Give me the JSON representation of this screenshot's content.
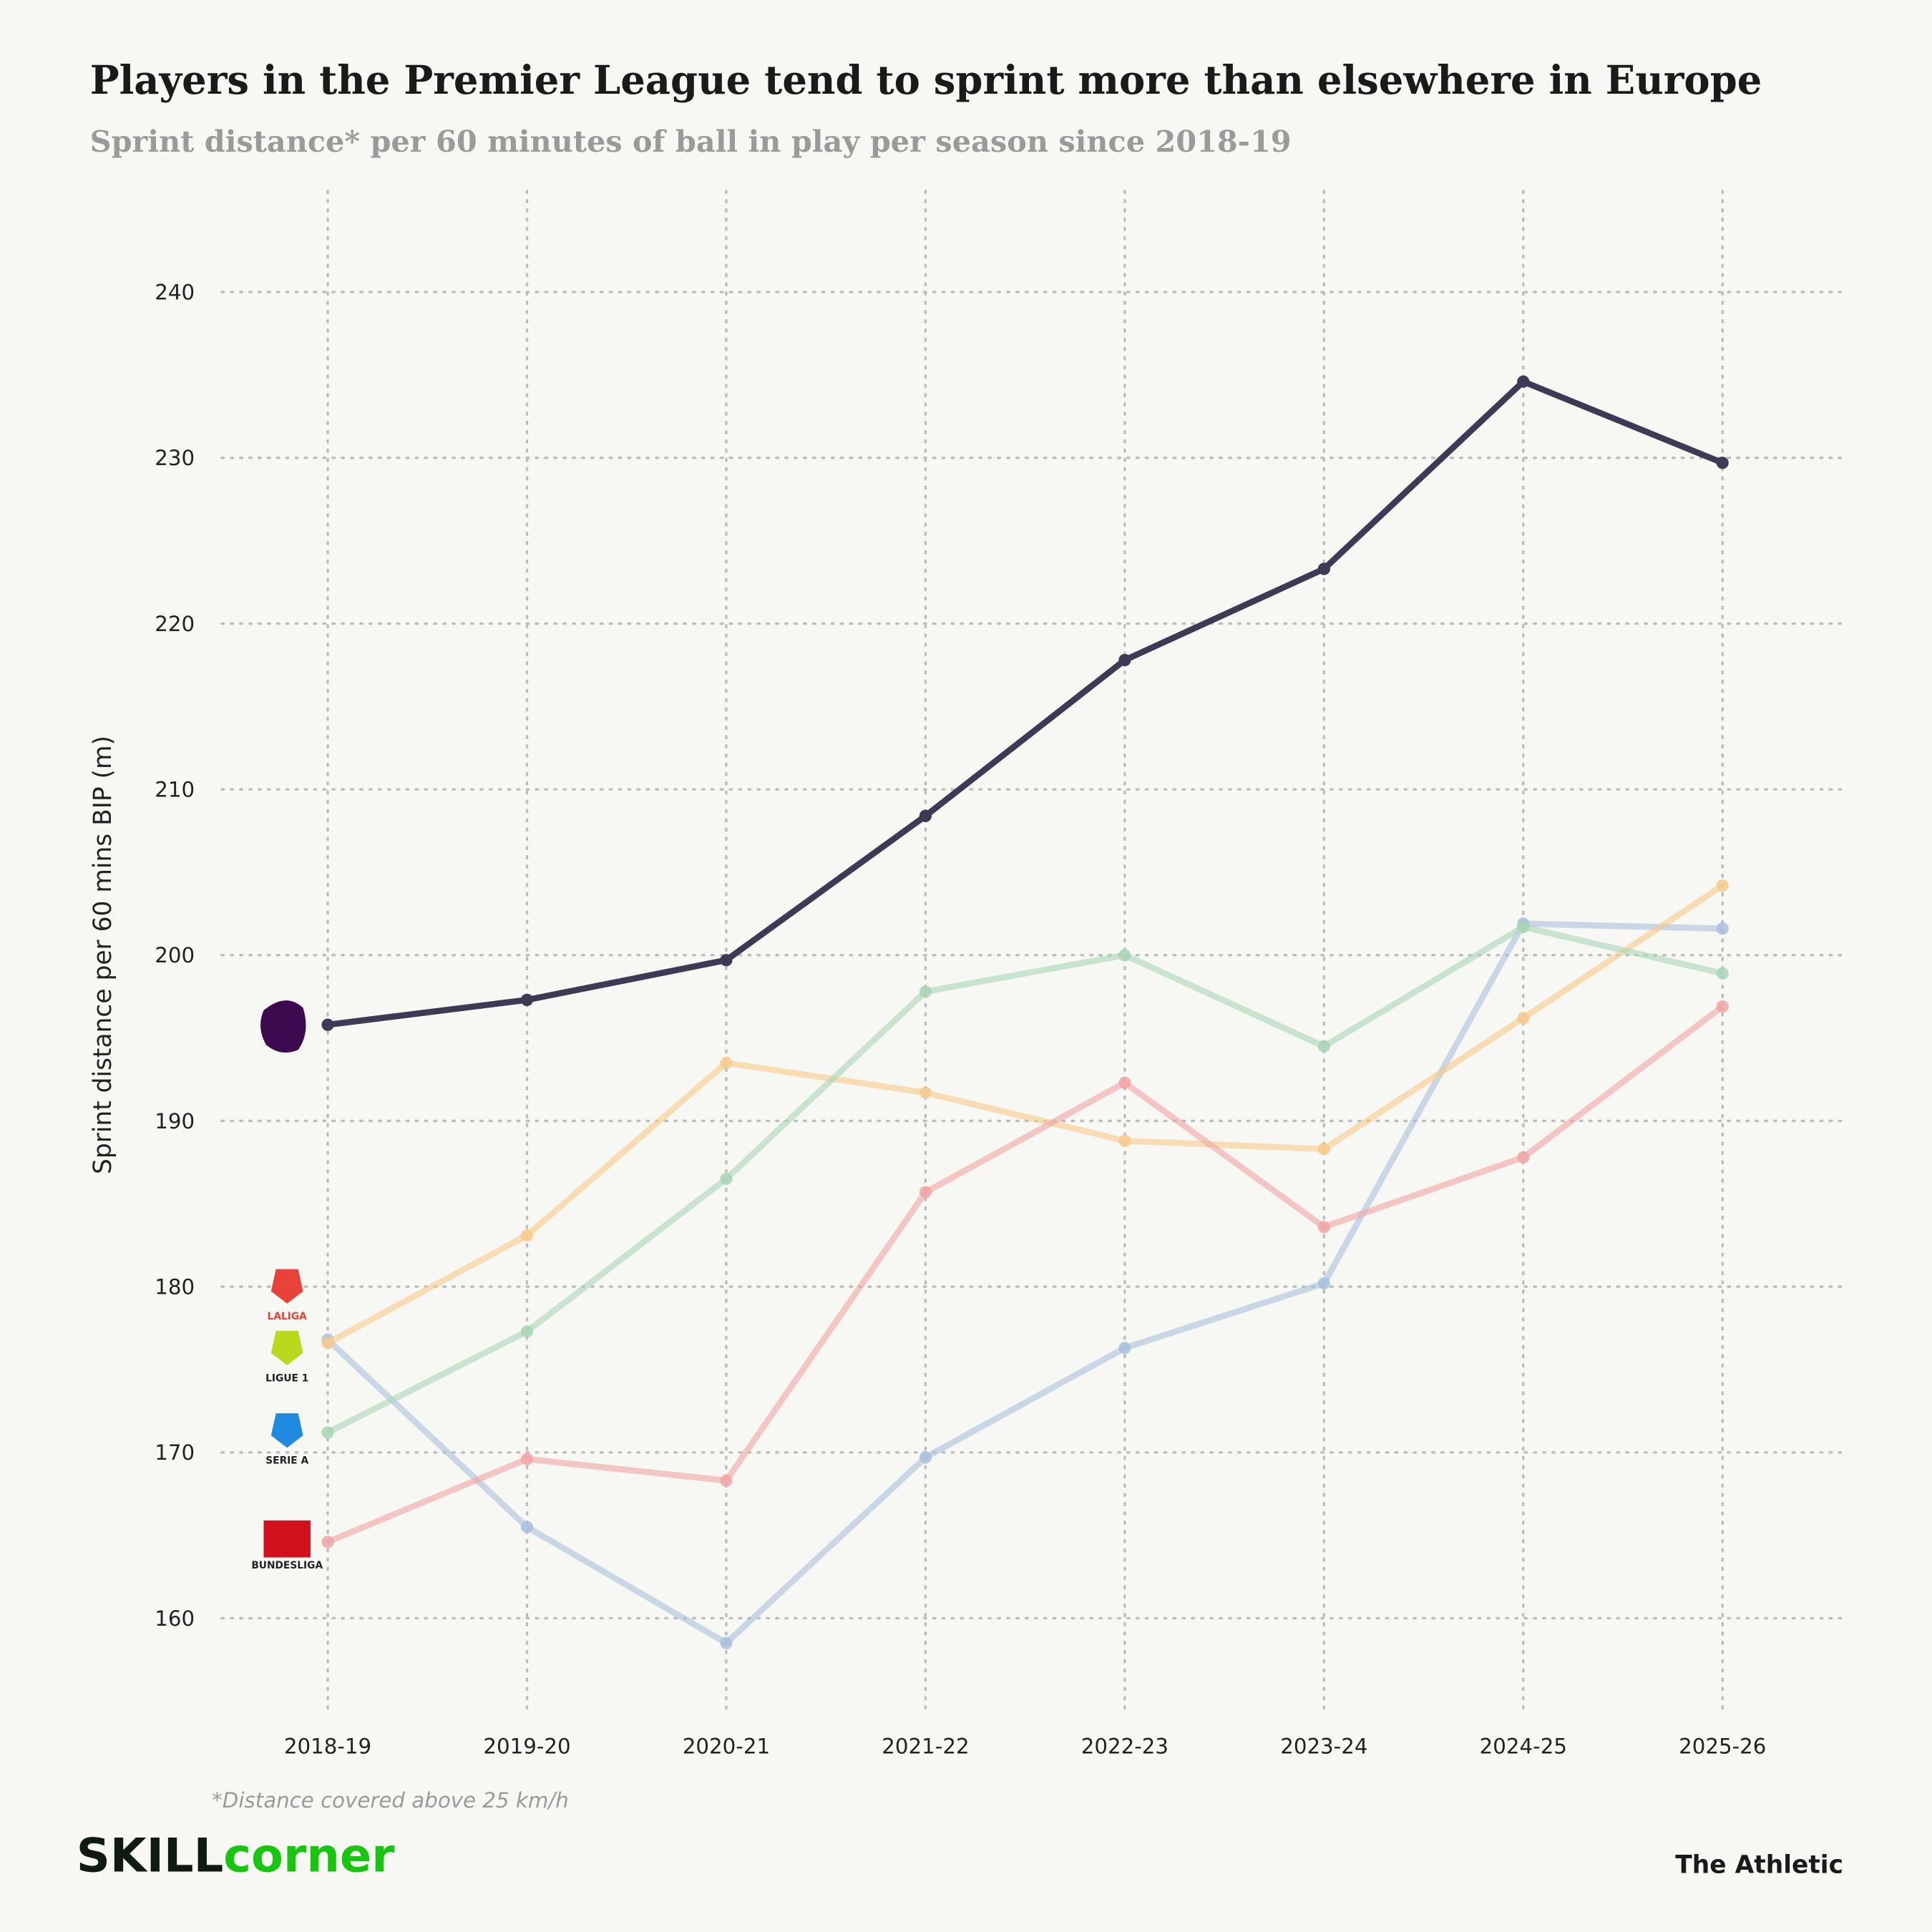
{
  "chart_data": {
    "type": "line",
    "title": "Players in the Premier League tend to sprint more than elsewhere in Europe",
    "subtitle": "Sprint distance* per 60 minutes of ball in play per season since 2018-19",
    "y_label": "Sprint distance per 60 mins BIP (m)",
    "footnote": "*Distance covered above 25 km/h",
    "brand_left": "SKILL",
    "brand_right": "corner",
    "publisher": "The Athletic",
    "categories": [
      "2018-19",
      "2019-20",
      "2020-21",
      "2021-22",
      "2022-23",
      "2023-24",
      "2024-25",
      "2025-26"
    ],
    "ylim": [
      154.3,
      246.1
    ],
    "yticks": [
      160,
      170,
      180,
      190,
      200,
      210,
      220,
      230,
      240
    ],
    "grid": true,
    "series": [
      {
        "color": "#a9bfdc",
        "name": "LALIGA",
        "values": [
          176.8,
          165.5,
          158.5,
          169.7,
          176.3,
          180.2,
          201.9,
          201.6
        ]
      },
      {
        "color": "#f7c98a",
        "name": "LIGUE 1",
        "values": [
          176.6,
          183.1,
          193.5,
          191.7,
          188.8,
          188.3,
          196.2,
          204.2
        ]
      },
      {
        "color": "#a8d5b5",
        "name": "SERIE A",
        "values": [
          171.2,
          177.3,
          186.5,
          197.8,
          200.0,
          194.5,
          201.7,
          198.9
        ]
      },
      {
        "color": "#f0a5a5",
        "name": "BUNDESLIGA",
        "values": [
          164.6,
          169.6,
          168.3,
          185.7,
          192.3,
          183.6,
          187.8,
          196.9
        ]
      },
      {
        "color": "#3d3a56",
        "values": [
          195.8,
          197.3,
          199.7,
          208.4,
          217.8,
          223.3,
          234.6,
          229.7
        ]
      }
    ]
  }
}
